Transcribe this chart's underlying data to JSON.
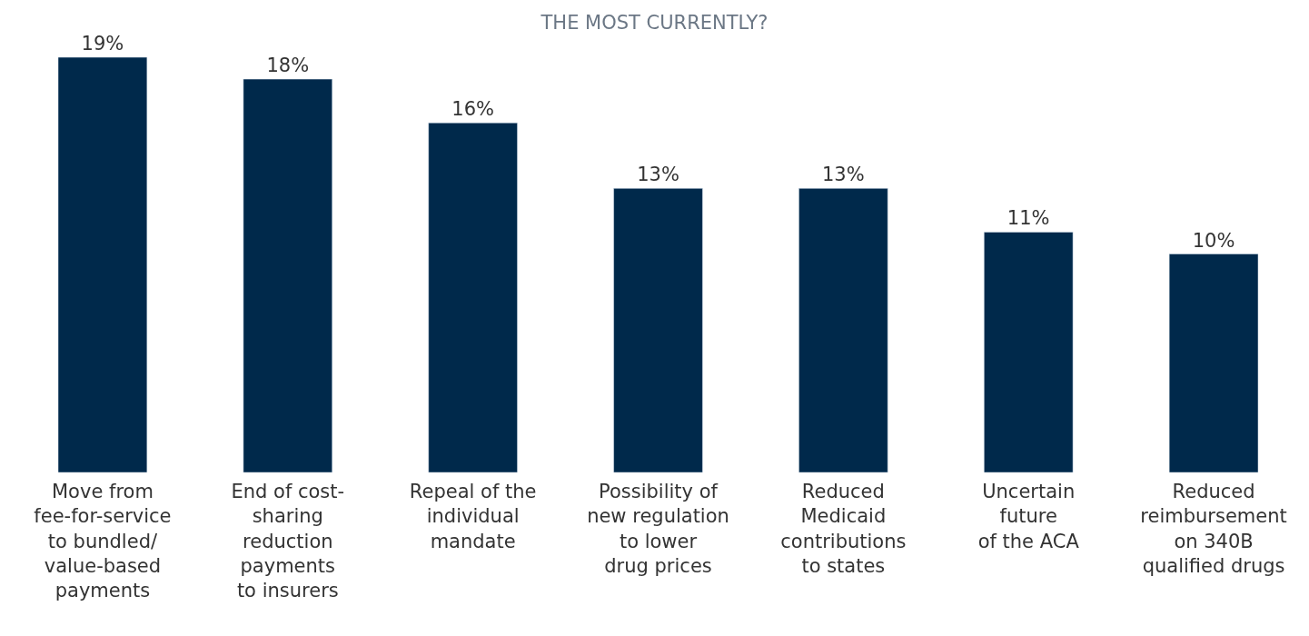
{
  "chart_data": {
    "type": "bar",
    "title": "THE MOST CURRENTLY?",
    "categories": [
      "Move from\nfee-for-service\nto bundled/\nvalue-based\npayments",
      "End of cost-\nsharing\nreduction\npayments\nto insurers",
      "Repeal of the\nindividual\nmandate",
      "Possibility of\nnew regulation\nto lower\ndrug prices",
      "Reduced\nMedicaid\ncontributions\nto states",
      "Uncertain\nfuture\nof the ACA",
      "Reduced\nreimbursement\non 340B\nqualified drugs"
    ],
    "values": [
      19,
      18,
      16,
      13,
      13,
      11,
      10
    ],
    "value_labels": [
      "19%",
      "18%",
      "16%",
      "13%",
      "13%",
      "11%",
      "10%"
    ],
    "color": "#00294b"
  }
}
